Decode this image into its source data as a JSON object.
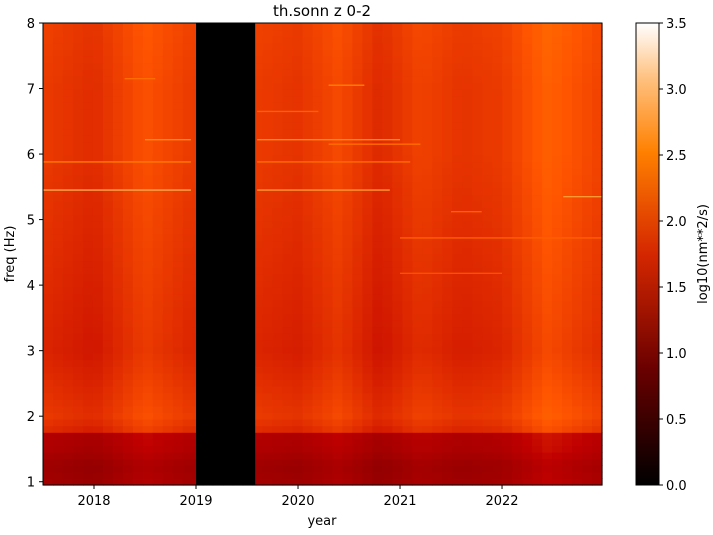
{
  "chart_data": {
    "type": "heatmap",
    "title": "th.sonn z 0-2",
    "xlabel": "year",
    "ylabel": "freq (Hz)",
    "xlim": [
      2017.5,
      2022.98
    ],
    "ylim": [
      0.95,
      8.0
    ],
    "x_ticks": [
      {
        "value": 2018,
        "label": "2018"
      },
      {
        "value": 2019,
        "label": "2019"
      },
      {
        "value": 2020,
        "label": "2020"
      },
      {
        "value": 2021,
        "label": "2021"
      },
      {
        "value": 2022,
        "label": "2022"
      }
    ],
    "y_ticks": [
      {
        "value": 1,
        "label": "1"
      },
      {
        "value": 2,
        "label": "2"
      },
      {
        "value": 3,
        "label": "3"
      },
      {
        "value": 4,
        "label": "4"
      },
      {
        "value": 5,
        "label": "5"
      },
      {
        "value": 6,
        "label": "6"
      },
      {
        "value": 7,
        "label": "7"
      },
      {
        "value": 8,
        "label": "8"
      }
    ],
    "data_gap": {
      "x_start": 2019.0,
      "x_end": 2019.58
    },
    "colorbar": {
      "label": "log10(nm**2/s)",
      "range": [
        0.0,
        3.5
      ],
      "colormap": "gist_heat",
      "ticks": [
        {
          "value": 0.0,
          "label": "0.0"
        },
        {
          "value": 0.5,
          "label": "0.5"
        },
        {
          "value": 1.0,
          "label": "1.0"
        },
        {
          "value": 1.5,
          "label": "1.5"
        },
        {
          "value": 2.0,
          "label": "2.0"
        },
        {
          "value": 2.5,
          "label": "2.5"
        },
        {
          "value": 3.0,
          "label": "3.0"
        },
        {
          "value": 3.5,
          "label": "3.5"
        }
      ]
    },
    "freq_profile": [
      {
        "freq": 1.0,
        "value": 1.5
      },
      {
        "freq": 1.25,
        "value": 1.45
      },
      {
        "freq": 1.5,
        "value": 1.6
      },
      {
        "freq": 1.75,
        "value": 1.65
      },
      {
        "freq": 1.8,
        "value": 2.05
      },
      {
        "freq": 2.0,
        "value": 2.15
      },
      {
        "freq": 3.0,
        "value": 2.0
      },
      {
        "freq": 4.0,
        "value": 2.05
      },
      {
        "freq": 5.0,
        "value": 2.1
      },
      {
        "freq": 6.0,
        "value": 2.15
      },
      {
        "freq": 7.0,
        "value": 2.15
      },
      {
        "freq": 8.0,
        "value": 2.2
      }
    ],
    "time_modulation": [
      {
        "year": 2017.5,
        "delta": 0.0
      },
      {
        "year": 2018.0,
        "delta": -0.1
      },
      {
        "year": 2018.5,
        "delta": 0.15
      },
      {
        "year": 2018.95,
        "delta": 0.0
      },
      {
        "year": 2019.6,
        "delta": 0.0
      },
      {
        "year": 2020.0,
        "delta": -0.05
      },
      {
        "year": 2020.4,
        "delta": 0.1
      },
      {
        "year": 2020.8,
        "delta": -0.12
      },
      {
        "year": 2021.2,
        "delta": 0.05
      },
      {
        "year": 2021.6,
        "delta": -0.05
      },
      {
        "year": 2022.0,
        "delta": 0.0
      },
      {
        "year": 2022.45,
        "delta": 0.25
      },
      {
        "year": 2022.98,
        "delta": 0.05
      }
    ],
    "spectral_lines": [
      {
        "freq": 5.45,
        "x_start": 2017.5,
        "x_end": 2018.95,
        "value": 2.9
      },
      {
        "freq": 5.45,
        "x_start": 2019.6,
        "x_end": 2020.9,
        "value": 2.8
      },
      {
        "freq": 5.88,
        "x_start": 2017.5,
        "x_end": 2018.95,
        "value": 2.6
      },
      {
        "freq": 5.88,
        "x_start": 2019.6,
        "x_end": 2021.1,
        "value": 2.5
      },
      {
        "freq": 6.22,
        "x_start": 2018.5,
        "x_end": 2018.95,
        "value": 2.7
      },
      {
        "freq": 6.22,
        "x_start": 2019.6,
        "x_end": 2021.0,
        "value": 2.7
      },
      {
        "freq": 6.15,
        "x_start": 2020.3,
        "x_end": 2021.2,
        "value": 2.5
      },
      {
        "freq": 7.05,
        "x_start": 2020.3,
        "x_end": 2020.65,
        "value": 2.6
      },
      {
        "freq": 7.15,
        "x_start": 2018.3,
        "x_end": 2018.6,
        "value": 2.5
      },
      {
        "freq": 4.72,
        "x_start": 2021.0,
        "x_end": 2022.98,
        "value": 2.4
      },
      {
        "freq": 4.18,
        "x_start": 2021.0,
        "x_end": 2022.0,
        "value": 2.3
      },
      {
        "freq": 5.35,
        "x_start": 2022.6,
        "x_end": 2022.98,
        "value": 2.8
      },
      {
        "freq": 5.12,
        "x_start": 2021.5,
        "x_end": 2021.8,
        "value": 2.4
      },
      {
        "freq": 6.65,
        "x_start": 2019.6,
        "x_end": 2020.2,
        "value": 2.4
      }
    ]
  }
}
